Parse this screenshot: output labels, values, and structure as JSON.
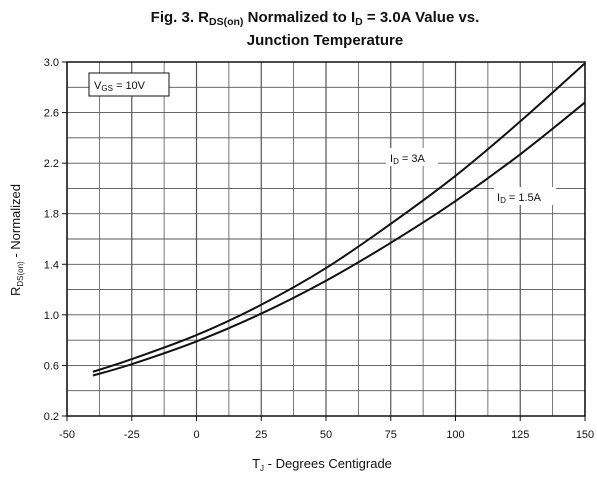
{
  "chart_data": {
    "type": "line",
    "title_parts": {
      "prefix": "Fig. 3. R",
      "rds_sub": "DS(on)",
      "middle": " Normalized to I",
      "id_sub": "D",
      "suffix": " = 3.0A Value vs."
    },
    "title_line2": "Junction Temperature",
    "xlabel": {
      "main": "T",
      "sub": "J",
      "rest": " - Degrees Centigrade"
    },
    "ylabel": {
      "main": "R",
      "sub": "DS(on)",
      "rest": " - Normalized"
    },
    "xlim": [
      -50,
      150
    ],
    "ylim": [
      0.2,
      3.0
    ],
    "x_ticks": [
      -50,
      -25,
      0,
      25,
      50,
      75,
      100,
      125,
      150
    ],
    "x_tick_labels": [
      "-50",
      "-25",
      "0",
      "25",
      "50",
      "75",
      "100",
      "125",
      "150"
    ],
    "y_ticks": [
      0.2,
      0.6,
      1.0,
      1.4,
      1.8,
      2.2,
      2.6,
      3.0
    ],
    "y_tick_labels": [
      "0.2",
      "0.6",
      "1.0",
      "1.4",
      "1.8",
      "2.2",
      "2.6",
      "3.0"
    ],
    "grid": true,
    "grid_step_x": 12.5,
    "grid_step_y": 0.2,
    "annotation_box": {
      "main": "V",
      "sub": "GS",
      "rest": " = 10V"
    },
    "series": [
      {
        "name_main": "I",
        "name_sub": "D",
        "name_rest": " = 3A",
        "x": [
          -40,
          -25,
          0,
          25,
          50,
          75,
          100,
          125,
          150
        ],
        "y": [
          0.55,
          0.65,
          0.84,
          1.08,
          1.37,
          1.72,
          2.1,
          2.53,
          2.99
        ]
      },
      {
        "name_main": "I",
        "name_sub": "D",
        "name_rest": " = 1.5A",
        "x": [
          -40,
          -25,
          0,
          25,
          50,
          75,
          100,
          125,
          150
        ],
        "y": [
          0.52,
          0.61,
          0.79,
          1.01,
          1.27,
          1.57,
          1.9,
          2.27,
          2.68
        ]
      }
    ],
    "line_color": "#111111",
    "grid_color": "#555555"
  }
}
